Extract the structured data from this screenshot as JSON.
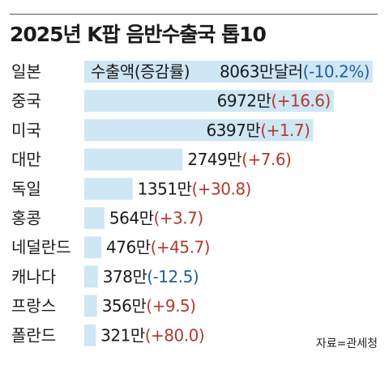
{
  "title": "2025년 K팝 음반수출국 톱10",
  "source": "자료=관세청",
  "colors": {
    "bar": "#cfe6f4",
    "increase": "#b23a2e",
    "decrease": "#1f5f9e"
  },
  "chart_data": {
    "type": "bar",
    "orientation": "horizontal",
    "header": "수출액(증감률)",
    "unit_first": "만달러",
    "unit": "만",
    "categories": [
      "일본",
      "중국",
      "미국",
      "대만",
      "독일",
      "홍콩",
      "네덜란드",
      "캐나다",
      "프랑스",
      "폴란드"
    ],
    "values": [
      8063,
      6972,
      6397,
      2749,
      1351,
      564,
      476,
      378,
      356,
      321
    ],
    "change_pct": [
      -10.2,
      16.6,
      1.7,
      7.6,
      30.8,
      3.7,
      45.7,
      -12.5,
      9.5,
      80.0
    ],
    "change_labels": [
      "(-10.2%)",
      "(+16.6)",
      "(+1.7)",
      "(+7.6)",
      "(+30.8)",
      "(+3.7)",
      "(+45.7)",
      "(-12.5)",
      "(+9.5)",
      "(+80.0)"
    ]
  }
}
